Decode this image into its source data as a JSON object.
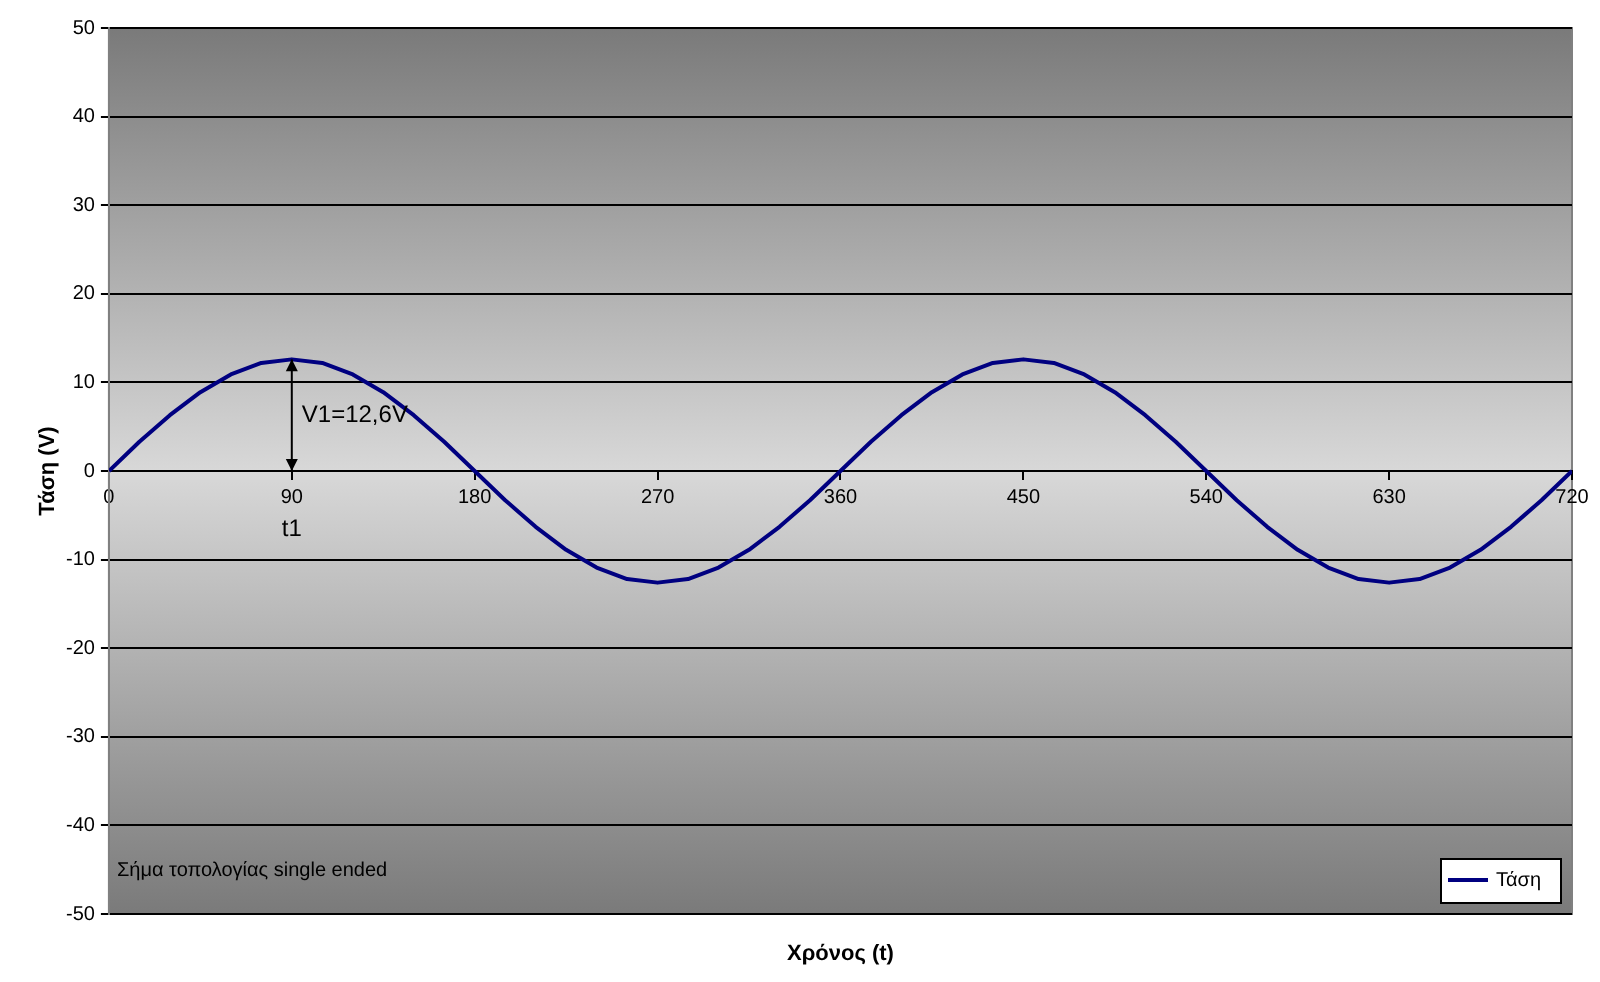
{
  "chart_data": {
    "type": "line",
    "xlabel": "Χρόνος (t)",
    "ylabel": "Τάση (V)",
    "x": [
      0,
      15,
      30,
      45,
      60,
      75,
      90,
      105,
      120,
      135,
      150,
      165,
      180,
      195,
      210,
      225,
      240,
      255,
      270,
      285,
      300,
      315,
      330,
      345,
      360,
      375,
      390,
      405,
      420,
      435,
      450,
      465,
      480,
      495,
      510,
      525,
      540,
      555,
      570,
      585,
      600,
      615,
      630,
      645,
      660,
      675,
      690,
      705,
      720
    ],
    "series": [
      {
        "name": "Τάση",
        "color": "#000080",
        "values": [
          0,
          3.3,
          6.3,
          8.9,
          10.9,
          12.2,
          12.6,
          12.2,
          10.9,
          8.9,
          6.3,
          3.3,
          0,
          -3.3,
          -6.3,
          -8.9,
          -10.9,
          -12.2,
          -12.6,
          -12.2,
          -10.9,
          -8.9,
          -6.3,
          -3.3,
          0,
          3.3,
          6.3,
          8.9,
          10.9,
          12.2,
          12.6,
          12.2,
          10.9,
          8.9,
          6.3,
          3.3,
          0,
          -3.3,
          -6.3,
          -8.9,
          -10.9,
          -12.2,
          -12.6,
          -12.2,
          -10.9,
          -8.9,
          -6.3,
          -3.3,
          0
        ]
      }
    ],
    "xlim": [
      0,
      720
    ],
    "xticks": [
      0,
      90,
      180,
      270,
      360,
      450,
      540,
      630,
      720
    ],
    "ylim": [
      -50,
      50
    ],
    "yticks": [
      -50,
      -40,
      -30,
      -20,
      -10,
      0,
      10,
      20,
      30,
      40,
      50
    ],
    "grid": "y",
    "legend": "bottom right",
    "marker": "none",
    "line_style": "solid",
    "annotations": [
      {
        "text": "V1=12,6V",
        "x": 90,
        "y": 12.6
      },
      "t1",
      "Σήμα τοπολογίας single ended"
    ]
  }
}
